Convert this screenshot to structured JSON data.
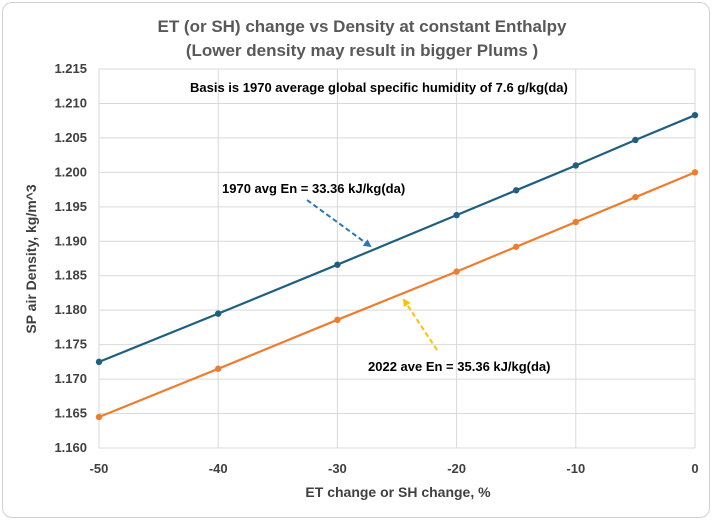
{
  "chart_data": {
    "type": "line",
    "title": [
      "ET (or SH) change vs Density at constant Enthalpy",
      "(Lower density may result in bigger Plums )"
    ],
    "xlabel": "ET change or SH change, %",
    "ylabel": "SP air Density, kg/m^3",
    "xlim": [
      -50,
      0
    ],
    "ylim": [
      1.16,
      1.215
    ],
    "x_ticks": [
      "-50",
      "-40",
      "-30",
      "-20",
      "-10",
      "0"
    ],
    "y_ticks": [
      "1.160",
      "1.165",
      "1.170",
      "1.175",
      "1.180",
      "1.185",
      "1.190",
      "1.195",
      "1.200",
      "1.205",
      "1.210",
      "1.215"
    ],
    "grid": true,
    "series": [
      {
        "color": "#1f5f7f",
        "x": [
          -50,
          -40,
          -30,
          -20,
          -15,
          -10,
          -5,
          0
        ],
        "values": [
          1.1725,
          1.1795,
          1.1866,
          1.1938,
          1.1974,
          1.201,
          1.2047,
          1.2083
        ]
      },
      {
        "color": "#ed7d31",
        "x": [
          -50,
          -40,
          -30,
          -20,
          -15,
          -10,
          -5,
          0
        ],
        "values": [
          1.1645,
          1.1715,
          1.1786,
          1.1856,
          1.1892,
          1.1928,
          1.1964,
          1.2
        ]
      }
    ],
    "annotations": [
      {
        "text": "Basis is 1970 average global specific humidity of 7.6 g/kg(da)"
      },
      {
        "text": "1970 avg  En = 33.36 kJ/kg(da)",
        "arrow_color": "#2e75b6"
      },
      {
        "text": "2022 ave En = 35.36 kJ/kg(da)",
        "arrow_color": "#ffc000"
      }
    ]
  }
}
